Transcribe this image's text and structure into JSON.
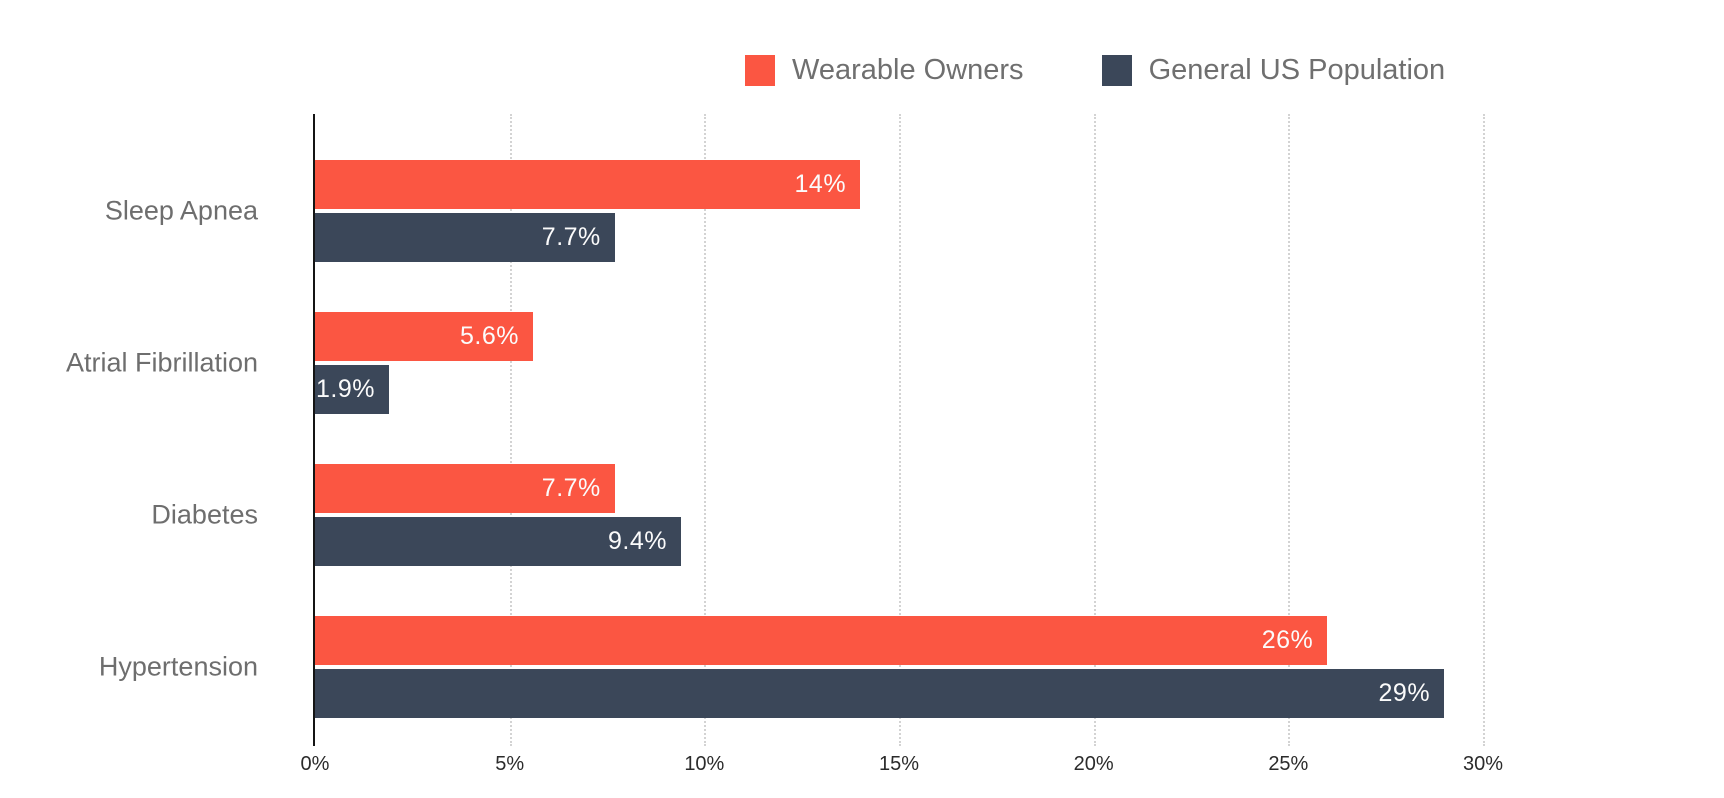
{
  "legend": {
    "items": [
      {
        "label": "Wearable Owners",
        "color": "#fb5642"
      },
      {
        "label": "General US Population",
        "color": "#3b4759"
      }
    ]
  },
  "chart_data": {
    "type": "bar",
    "orientation": "horizontal",
    "title": "",
    "categories": [
      "Sleep Apnea",
      "Atrial Fibrillation",
      "Diabetes",
      "Hypertension"
    ],
    "series": [
      {
        "name": "Wearable Owners",
        "color": "#fb5642",
        "values": [
          14,
          5.6,
          7.7,
          26
        ],
        "labels": [
          "14%",
          "5.6%",
          "7.7%",
          "26%"
        ]
      },
      {
        "name": "General US Population",
        "color": "#3b4759",
        "values": [
          7.7,
          1.9,
          9.4,
          29
        ],
        "labels": [
          "7.7%",
          "1.9%",
          "9.4%",
          "29%"
        ]
      }
    ],
    "xlim": [
      0,
      30
    ],
    "x_tick_values": [
      0,
      5,
      10,
      15,
      20,
      25,
      30
    ],
    "x_ticks": [
      "0%",
      "5%",
      "10%",
      "15%",
      "20%",
      "25%",
      "30%"
    ],
    "xlabel": "",
    "ylabel": "",
    "grid": "vertical-dotted",
    "legend_position": "top-right",
    "value_label_color": "#fbfbfb",
    "axis_line_color": "#141414",
    "gridline_color": "#d3d3d3",
    "category_label_color": "#6e6e6e",
    "tick_label_color": "#2b2b2b"
  }
}
